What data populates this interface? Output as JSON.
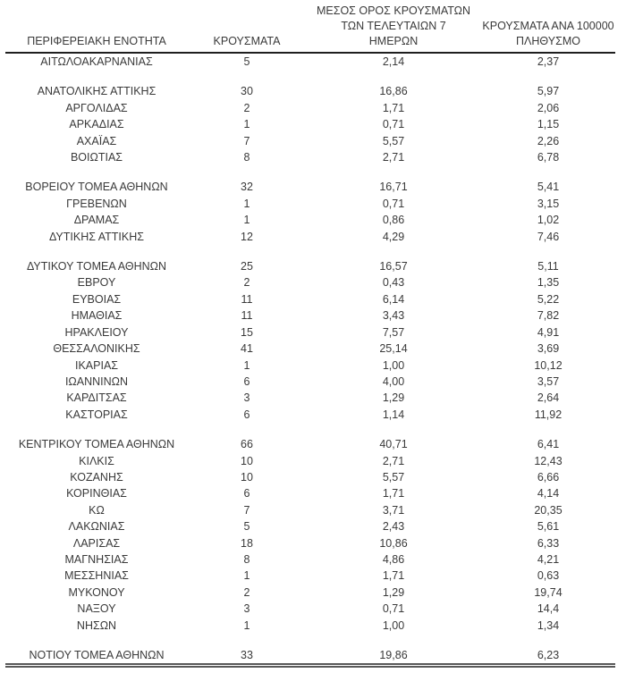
{
  "page": {
    "background": "#ffffff",
    "text_color": "#3a3a3a",
    "header_rule_color": "#1f1f1f",
    "bottom_rule_color": "#595959"
  },
  "table": {
    "headers": {
      "region": "ΠΕΡΙΦΕΡΕΙΑΚΗ ΕΝΟΤΗΤΑ",
      "cases": "ΚΡΟΥΣΜΑΤΑ",
      "avg7_line1": "ΜΕΣΟΣ ΟΡΟΣ ΚΡΟΥΣΜΑΤΩΝ",
      "avg7_line2": "ΤΩΝ ΤΕΛΕΥΤΑΙΩΝ 7",
      "avg7_line3": "ΗΜΕΡΩΝ",
      "per100k_line1": "ΚΡΟΥΣΜΑΤΑ ΑΝΑ 100000",
      "per100k_line2": "ΠΛΗΘΥΣΜΟ"
    },
    "groups": [
      {
        "rows": [
          {
            "region": "ΑΙΤΩΛΟΑΚΑΡΝΑΝΙΑΣ",
            "cases": "5",
            "avg7": "2,14",
            "per100k": "2,37"
          }
        ]
      },
      {
        "rows": [
          {
            "region": "ΑΝΑΤΟΛΙΚΗΣ ΑΤΤΙΚΗΣ",
            "cases": "30",
            "avg7": "16,86",
            "per100k": "5,97"
          },
          {
            "region": "ΑΡΓΟΛΙΔΑΣ",
            "cases": "2",
            "avg7": "1,71",
            "per100k": "2,06"
          },
          {
            "region": "ΑΡΚΑΔΙΑΣ",
            "cases": "1",
            "avg7": "0,71",
            "per100k": "1,15"
          },
          {
            "region": "ΑΧΑΪΑΣ",
            "cases": "7",
            "avg7": "5,57",
            "per100k": "2,26"
          },
          {
            "region": "ΒΟΙΩΤΙΑΣ",
            "cases": "8",
            "avg7": "2,71",
            "per100k": "6,78"
          }
        ]
      },
      {
        "rows": [
          {
            "region": "ΒΟΡΕΙΟΥ ΤΟΜΕΑ ΑΘΗΝΩΝ",
            "cases": "32",
            "avg7": "16,71",
            "per100k": "5,41"
          },
          {
            "region": "ΓΡΕΒΕΝΩΝ",
            "cases": "1",
            "avg7": "0,71",
            "per100k": "3,15"
          },
          {
            "region": "ΔΡΑΜΑΣ",
            "cases": "1",
            "avg7": "0,86",
            "per100k": "1,02"
          },
          {
            "region": "ΔΥΤΙΚΗΣ ΑΤΤΙΚΗΣ",
            "cases": "12",
            "avg7": "4,29",
            "per100k": "7,46"
          }
        ]
      },
      {
        "rows": [
          {
            "region": "ΔΥΤΙΚΟΥ ΤΟΜΕΑ ΑΘΗΝΩΝ",
            "cases": "25",
            "avg7": "16,57",
            "per100k": "5,11"
          },
          {
            "region": "ΕΒΡΟΥ",
            "cases": "2",
            "avg7": "0,43",
            "per100k": "1,35"
          },
          {
            "region": "ΕΥΒΟΙΑΣ",
            "cases": "11",
            "avg7": "6,14",
            "per100k": "5,22"
          },
          {
            "region": "ΗΜΑΘΙΑΣ",
            "cases": "11",
            "avg7": "3,43",
            "per100k": "7,82"
          },
          {
            "region": "ΗΡΑΚΛΕΙΟΥ",
            "cases": "15",
            "avg7": "7,57",
            "per100k": "4,91"
          },
          {
            "region": "ΘΕΣΣΑΛΟΝΙΚΗΣ",
            "cases": "41",
            "avg7": "25,14",
            "per100k": "3,69"
          },
          {
            "region": "ΙΚΑΡΙΑΣ",
            "cases": "1",
            "avg7": "1,00",
            "per100k": "10,12"
          },
          {
            "region": "ΙΩΑΝΝΙΝΩΝ",
            "cases": "6",
            "avg7": "4,00",
            "per100k": "3,57"
          },
          {
            "region": "ΚΑΡΔΙΤΣΑΣ",
            "cases": "3",
            "avg7": "1,29",
            "per100k": "2,64"
          },
          {
            "region": "ΚΑΣΤΟΡΙΑΣ",
            "cases": "6",
            "avg7": "1,14",
            "per100k": "11,92"
          }
        ]
      },
      {
        "rows": [
          {
            "region": "ΚΕΝΤΡΙΚΟΥ ΤΟΜΕΑ ΑΘΗΝΩΝ",
            "cases": "66",
            "avg7": "40,71",
            "per100k": "6,41"
          },
          {
            "region": "ΚΙΛΚΙΣ",
            "cases": "10",
            "avg7": "2,71",
            "per100k": "12,43"
          },
          {
            "region": "ΚΟΖΑΝΗΣ",
            "cases": "10",
            "avg7": "5,57",
            "per100k": "6,66"
          },
          {
            "region": "ΚΟΡΙΝΘΙΑΣ",
            "cases": "6",
            "avg7": "1,71",
            "per100k": "4,14"
          },
          {
            "region": "ΚΩ",
            "cases": "7",
            "avg7": "3,71",
            "per100k": "20,35"
          },
          {
            "region": "ΛΑΚΩΝΙΑΣ",
            "cases": "5",
            "avg7": "2,43",
            "per100k": "5,61"
          },
          {
            "region": "ΛΑΡΙΣΑΣ",
            "cases": "18",
            "avg7": "10,86",
            "per100k": "6,33"
          },
          {
            "region": "ΜΑΓΝΗΣΙΑΣ",
            "cases": "8",
            "avg7": "4,86",
            "per100k": "4,21"
          },
          {
            "region": "ΜΕΣΣΗΝΙΑΣ",
            "cases": "1",
            "avg7": "1,71",
            "per100k": "0,63"
          },
          {
            "region": "ΜΥΚΟΝΟΥ",
            "cases": "2",
            "avg7": "1,29",
            "per100k": "19,74"
          },
          {
            "region": "ΝΑΞΟΥ",
            "cases": "3",
            "avg7": "0,71",
            "per100k": "14,4"
          },
          {
            "region": "ΝΗΣΩΝ",
            "cases": "1",
            "avg7": "1,00",
            "per100k": "1,34"
          }
        ]
      },
      {
        "rows": [
          {
            "region": "ΝΟΤΙΟΥ ΤΟΜΕΑ ΑΘΗΝΩΝ",
            "cases": "33",
            "avg7": "19,86",
            "per100k": "6,23"
          }
        ]
      }
    ]
  }
}
